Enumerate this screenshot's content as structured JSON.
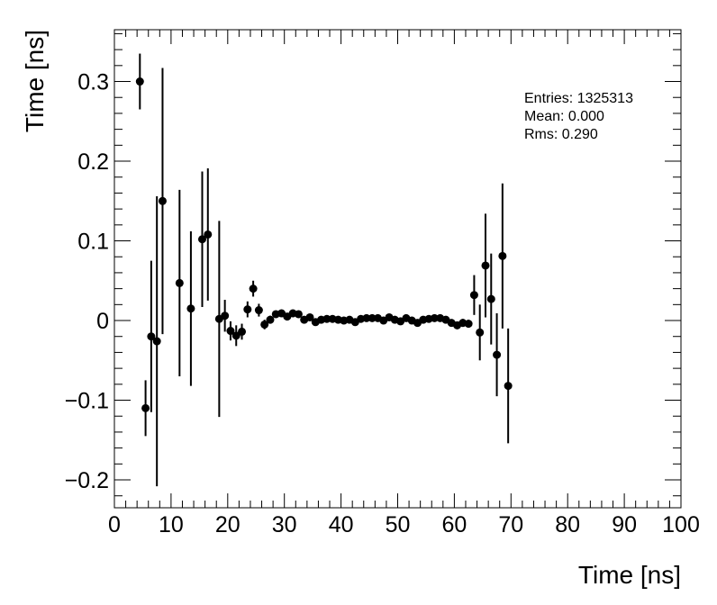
{
  "chart_data": {
    "type": "scatter",
    "title": "",
    "xlabel": "Time [ns]",
    "ylabel": "Time [ns]",
    "xlim": [
      0,
      100
    ],
    "ylim": [
      -0.235,
      0.365
    ],
    "grid": false,
    "x_ticks": [
      0,
      10,
      20,
      30,
      40,
      50,
      60,
      70,
      80,
      90,
      100
    ],
    "x_tick_labels": [
      "0",
      "10",
      "20",
      "30",
      "40",
      "50",
      "60",
      "70",
      "80",
      "90",
      "100"
    ],
    "y_ticks": [
      -0.2,
      -0.1,
      0,
      0.1,
      0.2,
      0.3
    ],
    "y_tick_labels": [
      "−0.2",
      "−0.1",
      "0",
      "0.1",
      "0.2",
      "0.3"
    ],
    "stats": {
      "entries_line": "Entries: 1325313",
      "mean_line": "Mean: 0.000",
      "rms_line": "Rms: 0.290"
    },
    "series": [
      {
        "marker": "circle",
        "color": "#000000",
        "points": [
          {
            "x": 4.5,
            "y": 0.3,
            "err": 0.035
          },
          {
            "x": 5.5,
            "y": -0.11,
            "err": 0.035
          },
          {
            "x": 6.5,
            "y": -0.02,
            "err": 0.095
          },
          {
            "x": 7.5,
            "y": -0.026,
            "err": 0.182
          },
          {
            "x": 8.5,
            "y": 0.15,
            "err": 0.167
          },
          {
            "x": 11.5,
            "y": 0.047,
            "err": 0.117
          },
          {
            "x": 13.5,
            "y": 0.015,
            "err": 0.097
          },
          {
            "x": 15.5,
            "y": 0.102,
            "err": 0.085
          },
          {
            "x": 16.5,
            "y": 0.108,
            "err": 0.083
          },
          {
            "x": 18.5,
            "y": 0.002,
            "err": 0.123
          },
          {
            "x": 19.5,
            "y": 0.006,
            "err": 0.02
          },
          {
            "x": 20.5,
            "y": -0.013,
            "err": 0.012
          },
          {
            "x": 21.5,
            "y": -0.019,
            "err": 0.013
          },
          {
            "x": 22.5,
            "y": -0.014,
            "err": 0.01
          },
          {
            "x": 23.5,
            "y": 0.014,
            "err": 0.01
          },
          {
            "x": 24.5,
            "y": 0.04,
            "err": 0.01
          },
          {
            "x": 25.5,
            "y": 0.013,
            "err": 0.008
          },
          {
            "x": 26.5,
            "y": -0.005,
            "err": 0.006
          },
          {
            "x": 27.5,
            "y": 0.001,
            "err": 0.005
          },
          {
            "x": 28.5,
            "y": 0.008,
            "err": 0.004
          },
          {
            "x": 29.5,
            "y": 0.009,
            "err": 0.004
          },
          {
            "x": 30.5,
            "y": 0.005,
            "err": 0.004
          },
          {
            "x": 31.5,
            "y": 0.009,
            "err": 0.003
          },
          {
            "x": 32.5,
            "y": 0.008,
            "err": 0.003
          },
          {
            "x": 33.5,
            "y": 0.001,
            "err": 0.003
          },
          {
            "x": 34.5,
            "y": 0.004,
            "err": 0.003
          },
          {
            "x": 35.5,
            "y": -0.002,
            "err": 0.003
          },
          {
            "x": 36.5,
            "y": 0.001,
            "err": 0.003
          },
          {
            "x": 37.5,
            "y": 0.002,
            "err": 0.003
          },
          {
            "x": 38.5,
            "y": 0.002,
            "err": 0.003
          },
          {
            "x": 39.5,
            "y": 0.001,
            "err": 0.003
          },
          {
            "x": 40.5,
            "y": 0.0,
            "err": 0.003
          },
          {
            "x": 41.5,
            "y": 0.001,
            "err": 0.003
          },
          {
            "x": 42.5,
            "y": -0.002,
            "err": 0.003
          },
          {
            "x": 43.5,
            "y": 0.002,
            "err": 0.003
          },
          {
            "x": 44.5,
            "y": 0.003,
            "err": 0.003
          },
          {
            "x": 45.5,
            "y": 0.003,
            "err": 0.003
          },
          {
            "x": 46.5,
            "y": 0.003,
            "err": 0.003
          },
          {
            "x": 47.5,
            "y": 0.0,
            "err": 0.003
          },
          {
            "x": 48.5,
            "y": 0.004,
            "err": 0.003
          },
          {
            "x": 49.5,
            "y": 0.001,
            "err": 0.003
          },
          {
            "x": 50.5,
            "y": -0.001,
            "err": 0.003
          },
          {
            "x": 51.5,
            "y": 0.003,
            "err": 0.003
          },
          {
            "x": 52.5,
            "y": 0.0,
            "err": 0.003
          },
          {
            "x": 53.5,
            "y": -0.003,
            "err": 0.003
          },
          {
            "x": 54.5,
            "y": 0.001,
            "err": 0.003
          },
          {
            "x": 55.5,
            "y": 0.002,
            "err": 0.003
          },
          {
            "x": 56.5,
            "y": 0.003,
            "err": 0.003
          },
          {
            "x": 57.5,
            "y": 0.003,
            "err": 0.003
          },
          {
            "x": 58.5,
            "y": 0.001,
            "err": 0.004
          },
          {
            "x": 59.5,
            "y": -0.003,
            "err": 0.004
          },
          {
            "x": 60.5,
            "y": -0.006,
            "err": 0.004
          },
          {
            "x": 61.5,
            "y": -0.003,
            "err": 0.005
          },
          {
            "x": 62.5,
            "y": -0.004,
            "err": 0.005
          },
          {
            "x": 63.5,
            "y": 0.032,
            "err": 0.025
          },
          {
            "x": 64.5,
            "y": -0.015,
            "err": 0.035
          },
          {
            "x": 65.5,
            "y": 0.069,
            "err": 0.065
          },
          {
            "x": 66.5,
            "y": 0.027,
            "err": 0.057
          },
          {
            "x": 67.5,
            "y": -0.043,
            "err": 0.052
          },
          {
            "x": 68.5,
            "y": 0.081,
            "err": 0.091
          },
          {
            "x": 69.5,
            "y": -0.082,
            "err": 0.072
          }
        ]
      }
    ]
  }
}
